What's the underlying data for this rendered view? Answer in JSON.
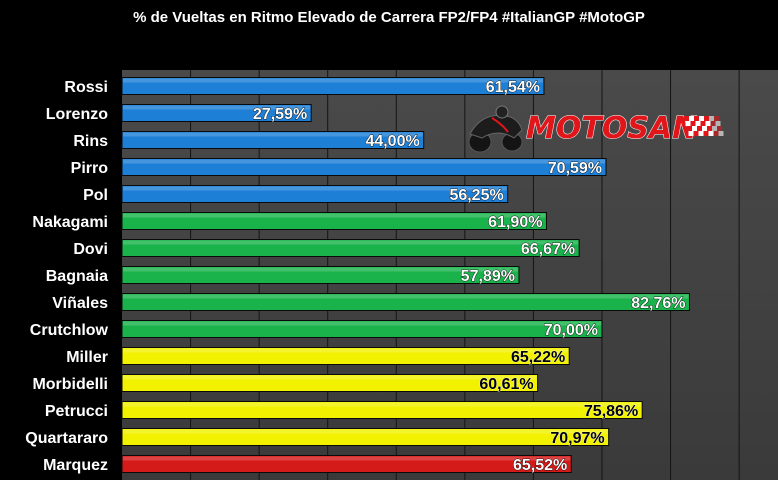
{
  "chart_data": {
    "type": "bar",
    "orientation": "horizontal",
    "title": "% de Vueltas en Ritmo Elevado de Carrera FP2/FP4 #ItalianGP #MotoGP",
    "xlabel": "",
    "ylabel": "",
    "xlim": [
      0,
      100
    ],
    "grid": true,
    "categories": [
      "Rossi",
      "Lorenzo",
      "Rins",
      "Pirro",
      "Pol",
      "Nakagami",
      "Dovi",
      "Bagnaia",
      "Viñales",
      "Crutchlow",
      "Miller",
      "Morbidelli",
      "Petrucci",
      "Quartararo",
      "Marquez"
    ],
    "values": [
      61.54,
      27.59,
      44.0,
      70.59,
      56.25,
      61.9,
      66.67,
      57.89,
      82.76,
      70.0,
      65.22,
      60.61,
      75.86,
      70.97,
      65.52
    ],
    "labels": [
      "61,54%",
      "27,59%",
      "44,00%",
      "70,59%",
      "56,25%",
      "61,90%",
      "66,67%",
      "57,89%",
      "82,76%",
      "70,00%",
      "65,22%",
      "60,61%",
      "75,86%",
      "70,97%",
      "65,52%"
    ],
    "colors": [
      "#1e7fd6",
      "#1e7fd6",
      "#1e7fd6",
      "#1e7fd6",
      "#1e7fd6",
      "#19b24b",
      "#19b24b",
      "#19b24b",
      "#19b24b",
      "#19b24b",
      "#f2f200",
      "#f2f200",
      "#f2f200",
      "#f2f200",
      "#d51a1a"
    ]
  },
  "logo": {
    "text": "MOTOSAN",
    "color": "#e0161b"
  }
}
